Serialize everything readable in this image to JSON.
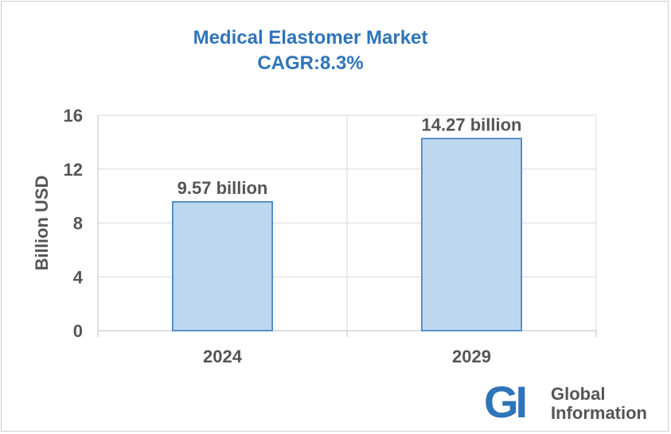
{
  "chart_data": {
    "type": "bar",
    "title": "Medical Elastomer Market",
    "subtitle": "CAGR:8.3%",
    "categories": [
      "2024",
      "2029"
    ],
    "values": [
      9.57,
      14.27
    ],
    "data_labels": [
      "9.57 billion",
      "14.27 billion"
    ],
    "xlabel": "",
    "ylabel": "Billion USD",
    "ylim": [
      0,
      16
    ],
    "yticks": [
      "0",
      "4",
      "8",
      "12",
      "16"
    ],
    "grid": true,
    "bar_fill": "#bdd7ee",
    "bar_stroke": "#2f74b8"
  },
  "logo": {
    "mark": "GI",
    "line1": "Global",
    "line2": "Information",
    "color": "#2f74b8"
  }
}
